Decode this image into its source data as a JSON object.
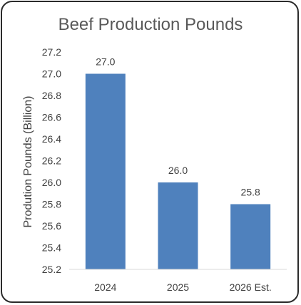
{
  "chart_data": {
    "type": "bar",
    "title": "Beef Production Pounds",
    "xlabel": "",
    "ylabel": "Prodution Pounds (Billion)",
    "categories": [
      "2024",
      "2025",
      "2026 Est."
    ],
    "values": [
      27.0,
      26.0,
      25.8
    ],
    "data_labels": [
      "27.0",
      "26.0",
      "25.8"
    ],
    "ylim": [
      25.2,
      27.2
    ],
    "yticks": [
      "25.2",
      "25.4",
      "25.6",
      "25.8",
      "26.0",
      "26.2",
      "26.4",
      "26.6",
      "26.8",
      "27.0",
      "27.2"
    ],
    "grid": false,
    "legend": "none",
    "bar_color": "#4f81bd",
    "axis_color": "#d9d9d9"
  }
}
